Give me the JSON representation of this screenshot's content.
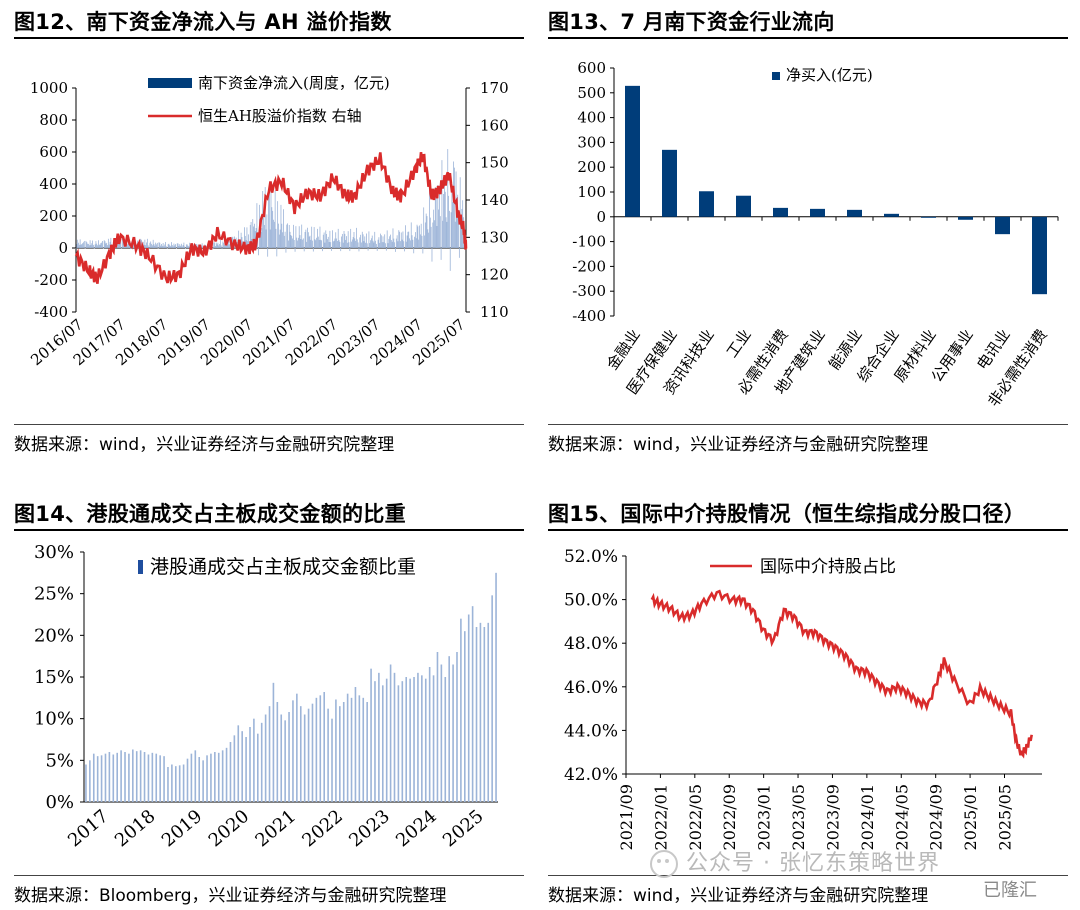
{
  "colors": {
    "navy": "#003d7a",
    "red": "#d92b2b",
    "blue_light": "#9cb4d8",
    "accent": "#1f4e9e"
  },
  "panels": {
    "p12": {
      "title": "图12、南下资金净流入与 AH 溢价指数",
      "source": "数据来源：wind，兴业证券经济与金融研究院整理"
    },
    "p13": {
      "title": "图13、7 月南下资金行业流向",
      "source": "数据来源：wind，兴业证券经济与金融研究院整理"
    },
    "p14": {
      "title": "图14、港股通成交占主板成交金额的比重",
      "source": "数据来源：Bloomberg，兴业证券经济与金融研究院整理"
    },
    "p15": {
      "title": "图15、国际中介持股情况（恒生综指成分股口径）",
      "source": "数据来源：wind，兴业证券经济与金融研究院整理"
    }
  },
  "watermark": {
    "text": "公众号 · 张忆东策略世界",
    "corner_text": "已隆汇"
  },
  "chart_data": [
    {
      "id": "fig12",
      "type": "bar+line",
      "x_labels": [
        "2016/07",
        "2017/07",
        "2018/07",
        "2019/07",
        "2020/07",
        "2021/07",
        "2022/07",
        "2023/07",
        "2024/07",
        "2025/07"
      ],
      "y_left": {
        "range": [
          -400,
          1000
        ],
        "ticks": [
          "-400",
          "-200",
          "0",
          "200",
          "400",
          "600",
          "800",
          "1000"
        ]
      },
      "y_right": {
        "range": [
          110,
          170
        ],
        "ticks": [
          "110",
          "120",
          "130",
          "140",
          "150",
          "160",
          "170"
        ]
      },
      "legend": [
        "南下资金净流入(周度，亿元)",
        "恒生AH股溢价指数 右轴"
      ],
      "series": [
        {
          "name": "南下资金净流入(周度，亿元)",
          "axis": "left",
          "kind": "bar",
          "t": [
            2016.5,
            2017.0,
            2017.5,
            2018.0,
            2018.5,
            2019.0,
            2019.5,
            2020.0,
            2020.5,
            2021.0,
            2021.5,
            2022.0,
            2022.5,
            2023.0,
            2023.5,
            2024.0,
            2024.5,
            2025.0,
            2025.3,
            2025.6
          ],
          "values": [
            60,
            50,
            80,
            70,
            40,
            35,
            30,
            60,
            150,
            480,
            160,
            150,
            120,
            130,
            100,
            130,
            180,
            560,
            700,
            280
          ]
        },
        {
          "name": "恒生AH股溢价指数 右轴",
          "axis": "right",
          "kind": "line",
          "t": [
            2016.5,
            2016.8,
            2017.0,
            2017.3,
            2017.5,
            2017.9,
            2018.2,
            2018.6,
            2018.9,
            2019.2,
            2019.5,
            2019.8,
            2020.2,
            2020.5,
            2020.7,
            2021.0,
            2021.3,
            2021.6,
            2021.9,
            2022.2,
            2022.5,
            2022.8,
            2023.0,
            2023.3,
            2023.6,
            2023.9,
            2024.1,
            2024.4,
            2024.6,
            2024.8,
            2025.0,
            2025.2,
            2025.4,
            2025.55,
            2025.6
          ],
          "values": [
            125,
            121,
            119,
            126,
            130,
            128,
            125,
            119,
            120,
            127,
            126,
            131,
            128,
            127,
            128,
            143,
            145,
            138,
            142,
            141,
            146,
            141,
            141,
            148,
            151,
            142,
            141,
            148,
            152,
            141,
            143,
            147,
            137,
            132,
            127
          ]
        }
      ]
    },
    {
      "id": "fig13",
      "type": "bar",
      "legend": [
        "净买入(亿元)"
      ],
      "y": {
        "range": [
          -400,
          600
        ],
        "ticks": [
          "-400",
          "-300",
          "-200",
          "-100",
          "0",
          "100",
          "200",
          "300",
          "400",
          "500",
          "600"
        ]
      },
      "categories": [
        "金融业",
        "医疗保健业",
        "资讯科技业",
        "工业",
        "必需性消费",
        "地产建筑业",
        "能源业",
        "综合企业",
        "原材料业",
        "公用事业",
        "电讯业",
        "非必需性消费"
      ],
      "values": [
        528,
        270,
        103,
        85,
        36,
        32,
        28,
        12,
        -2,
        -12,
        -70,
        -312
      ]
    },
    {
      "id": "fig14",
      "type": "bar",
      "legend": [
        "港股通成交占主板成交金额比重"
      ],
      "x_labels": [
        "2017",
        "2018",
        "2019",
        "2020",
        "2021",
        "2022",
        "2023",
        "2024",
        "2025"
      ],
      "y": {
        "range": [
          0,
          30
        ],
        "ticks": [
          "0%",
          "5%",
          "10%",
          "15%",
          "20%",
          "25%",
          "30%"
        ]
      },
      "monthly_values_pct": [
        4.5,
        5.0,
        5.8,
        5.5,
        5.6,
        5.8,
        6.0,
        5.7,
        5.9,
        6.2,
        6.0,
        5.8,
        6.3,
        6.1,
        6.2,
        6.0,
        5.7,
        5.9,
        5.8,
        5.6,
        5.5,
        4.2,
        4.5,
        4.3,
        4.4,
        4.5,
        5.2,
        5.8,
        6.2,
        5.4,
        5.0,
        5.6,
        5.8,
        6.0,
        5.9,
        6.2,
        6.5,
        7.2,
        8.0,
        9.2,
        8.5,
        7.8,
        9.0,
        10.0,
        8.2,
        9.5,
        10.5,
        11.5,
        14.3,
        12.0,
        10.5,
        9.8,
        10.8,
        12.2,
        13.0,
        11.5,
        10.5,
        11.2,
        11.8,
        12.5,
        12.8,
        13.2,
        11.2,
        10.0,
        12.3,
        11.5,
        12.0,
        13.0,
        12.5,
        13.8,
        12.8,
        12.5,
        12.0,
        16.0,
        14.5,
        15.5,
        14.0,
        14.8,
        16.5,
        15.5,
        14.0,
        14.5,
        15.0,
        14.8,
        15.0,
        15.5,
        15.2,
        14.8,
        16.2,
        15.2,
        18.0,
        16.5,
        15.0,
        17.5,
        16.5,
        18.0,
        22.0,
        20.5,
        22.5,
        23.5,
        21.0,
        21.5,
        21.0,
        21.5,
        24.8,
        27.5
      ]
    },
    {
      "id": "fig15",
      "type": "line",
      "legend": [
        "国际中介持股占比"
      ],
      "x_labels": [
        "2021/09",
        "2022/01",
        "2022/05",
        "2022/09",
        "2023/01",
        "2023/05",
        "2023/09",
        "2024/01",
        "2024/05",
        "2024/09",
        "2025/01",
        "2025/05"
      ],
      "y": {
        "range": [
          42,
          52
        ],
        "ticks": [
          "42.0%",
          "44.0%",
          "46.0%",
          "48.0%",
          "50.0%",
          "52.0%"
        ]
      },
      "series": [
        {
          "name": "国际中介持股占比",
          "t": [
            2021.92,
            2022.0,
            2022.1,
            2022.2,
            2022.3,
            2022.4,
            2022.55,
            2022.7,
            2022.8,
            2022.9,
            2023.0,
            2023.1,
            2023.2,
            2023.3,
            2023.4,
            2023.5,
            2023.6,
            2023.7,
            2023.8,
            2023.9,
            2024.0,
            2024.1,
            2024.2,
            2024.3,
            2024.4,
            2024.5,
            2024.6,
            2024.7,
            2024.75,
            2024.85,
            2025.0,
            2025.1,
            2025.2,
            2025.3,
            2025.4,
            2025.45,
            2025.5,
            2025.55,
            2025.6
          ],
          "values": [
            50.0,
            49.8,
            49.6,
            49.2,
            49.3,
            49.8,
            50.3,
            50.0,
            50.0,
            49.5,
            48.6,
            48.1,
            49.5,
            49.2,
            48.5,
            48.5,
            48.1,
            47.8,
            47.4,
            46.8,
            46.7,
            46.2,
            45.8,
            46.0,
            45.7,
            45.3,
            45.2,
            46.5,
            47.2,
            46.3,
            45.2,
            45.9,
            45.5,
            45.1,
            44.8,
            43.5,
            42.9,
            43.2,
            43.8
          ]
        }
      ]
    }
  ]
}
